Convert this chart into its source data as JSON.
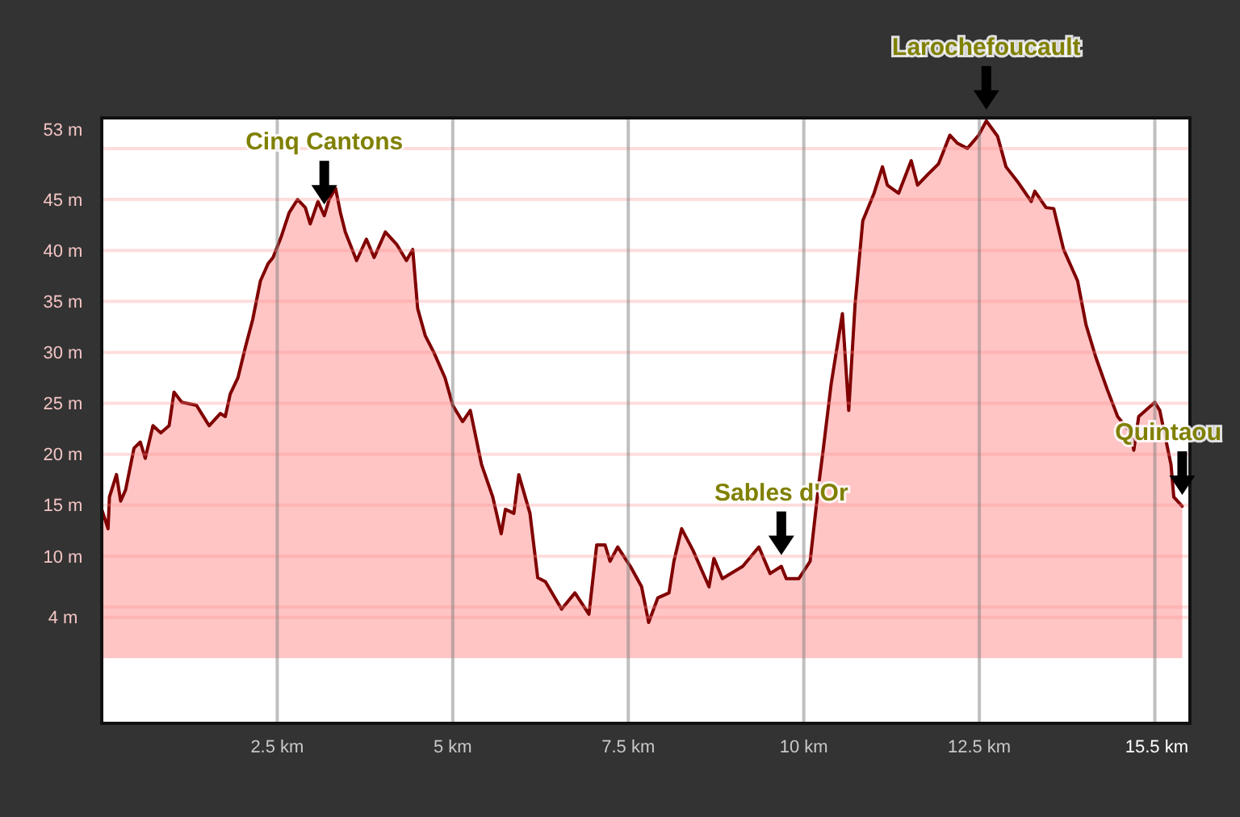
{
  "chart_data": {
    "type": "area",
    "x": [
      0,
      0.09,
      0.11,
      0.21,
      0.27,
      0.34,
      0.46,
      0.55,
      0.62,
      0.73,
      0.84,
      0.96,
      1.03,
      1.14,
      1.35,
      1.53,
      1.69,
      1.76,
      1.83,
      1.94,
      2.05,
      2.15,
      2.26,
      2.37,
      2.44,
      2.56,
      2.67,
      2.79,
      2.9,
      2.97,
      3.08,
      3.17,
      3.24,
      3.33,
      3.4,
      3.47,
      3.63,
      3.77,
      3.88,
      4.04,
      4.2,
      4.34,
      4.43,
      4.5,
      4.61,
      4.73,
      4.89,
      5.0,
      5.14,
      5.25,
      5.41,
      5.57,
      5.69,
      5.75,
      5.87,
      5.94,
      6.1,
      6.21,
      6.32,
      6.55,
      6.74,
      6.94,
      7.05,
      7.17,
      7.24,
      7.35,
      7.53,
      7.69,
      7.79,
      7.92,
      8.08,
      8.15,
      8.26,
      8.42,
      8.65,
      8.72,
      8.84,
      9.13,
      9.36,
      9.52,
      9.68,
      9.75,
      9.93,
      10.09,
      10.21,
      10.27,
      10.39,
      10.55,
      10.64,
      10.73,
      10.84,
      11.0,
      11.12,
      11.19,
      11.35,
      11.53,
      11.62,
      11.76,
      11.92,
      12.08,
      12.19,
      12.33,
      12.49,
      12.6,
      12.76,
      12.88,
      13.06,
      13.24,
      13.29,
      13.45,
      13.56,
      13.7,
      13.9,
      14.02,
      14.16,
      14.32,
      14.47,
      14.66,
      14.7,
      14.77,
      15.0,
      15.07,
      15.23,
      15.27,
      15.39
    ],
    "series": [
      {
        "color": "#ffc4c4",
        "values": [
          14.6,
          12.7,
          15.8,
          18.0,
          15.4,
          16.5,
          20.6,
          21.2,
          19.6,
          22.8,
          22.1,
          22.8,
          26.1,
          25.1,
          24.8,
          22.8,
          24.0,
          23.7,
          25.9,
          27.5,
          30.6,
          33.2,
          37.0,
          38.7,
          39.3,
          41.4,
          43.7,
          45.0,
          44.2,
          42.6,
          44.8,
          43.4,
          45.0,
          46.1,
          43.7,
          41.8,
          39.0,
          41.1,
          39.3,
          41.8,
          40.6,
          39.0,
          40.1,
          34.3,
          31.6,
          30.0,
          27.5,
          24.8,
          23.2,
          24.3,
          19.0,
          15.8,
          12.2,
          14.6,
          14.2,
          18.0,
          14.2,
          7.9,
          7.5,
          4.8,
          6.4,
          4.3,
          11.1,
          11.1,
          9.5,
          10.9,
          9.0,
          7.0,
          3.5,
          5.9,
          6.4,
          9.5,
          12.7,
          10.6,
          7.0,
          9.8,
          7.8,
          9.0,
          10.9,
          8.3,
          9.0,
          7.8,
          7.8,
          9.5,
          16.9,
          20.1,
          26.9,
          33.8,
          24.3,
          34.7,
          42.9,
          45.6,
          48.2,
          46.4,
          45.6,
          48.8,
          46.4,
          47.4,
          48.5,
          51.3,
          50.5,
          50.0,
          51.3,
          52.7,
          51.2,
          48.2,
          46.6,
          44.8,
          45.8,
          44.2,
          44.1,
          40.1,
          37.0,
          32.7,
          29.5,
          26.4,
          23.7,
          22.1,
          20.4,
          23.7,
          25.1,
          24.3,
          19.0,
          15.8,
          14.9
        ]
      }
    ],
    "xlim": [
      0,
      15.5
    ],
    "xticks": [
      {
        "value": 2.5,
        "label": "2.5 km"
      },
      {
        "value": 5,
        "label": "5 km"
      },
      {
        "value": 7.5,
        "label": "7.5 km"
      },
      {
        "value": 10,
        "label": "10 km"
      },
      {
        "value": 12.5,
        "label": "12.5 km"
      },
      {
        "value": 15,
        "label": null
      },
      {
        "value": 15.5,
        "label": "15.5 km"
      }
    ],
    "ylim": [
      -6.4,
      53
    ],
    "yticks": [
      {
        "value": 4,
        "label": "4 m"
      },
      {
        "value": 5,
        "label": null
      },
      {
        "value": 10,
        "label": "10 m"
      },
      {
        "value": 15,
        "label": "15 m"
      },
      {
        "value": 20,
        "label": "20 m"
      },
      {
        "value": 25,
        "label": "25 m"
      },
      {
        "value": 30,
        "label": "30 m"
      },
      {
        "value": 35,
        "label": "35 m"
      },
      {
        "value": 40,
        "label": "40 m"
      },
      {
        "value": 45,
        "label": "45 m"
      },
      {
        "value": 50,
        "label": null
      },
      {
        "value": 53,
        "label": "53 m"
      }
    ],
    "grid": true,
    "annotations": [
      {
        "text": "Cinq Cantons",
        "x": 3.17,
        "y": 43.4
      },
      {
        "text": "Sables d'Or",
        "x": 9.68,
        "y": 9.0
      },
      {
        "text": "Larochefoucault",
        "x": 12.6,
        "y": 52.7
      },
      {
        "text": "Quintaou",
        "x": 15.39,
        "y": 14.9
      }
    ]
  }
}
